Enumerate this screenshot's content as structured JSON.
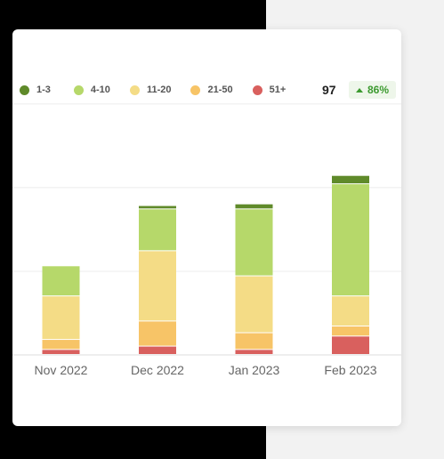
{
  "summary": {
    "total": "97",
    "change": "86%"
  },
  "colors": {
    "1-3": "#5f8a2a",
    "4-10": "#b6d86a",
    "11-20": "#f4dc86",
    "21-50": "#f7c467",
    "51+": "#d9605e"
  },
  "chart_data": {
    "type": "bar",
    "stacked": true,
    "categories": [
      "Nov 2022",
      "Dec 2022",
      "Jan 2023",
      "Feb 2023"
    ],
    "series": [
      {
        "name": "51+",
        "values": [
          1.5,
          2.5,
          1.5,
          5.5
        ]
      },
      {
        "name": "21-50",
        "values": [
          3,
          7.5,
          5,
          3
        ]
      },
      {
        "name": "11-20",
        "values": [
          13,
          21,
          17,
          9
        ]
      },
      {
        "name": "4-10",
        "values": [
          9,
          12.5,
          20,
          33.5
        ]
      },
      {
        "name": "1-3",
        "values": [
          0,
          1,
          1.5,
          2.5
        ]
      }
    ],
    "legend": [
      "1-3",
      "4-10",
      "11-20",
      "21-50",
      "51+"
    ],
    "legend_position": "top-left",
    "ylim": [
      0,
      80
    ],
    "gridlines": [
      0,
      25,
      50,
      75
    ],
    "grid": true
  }
}
